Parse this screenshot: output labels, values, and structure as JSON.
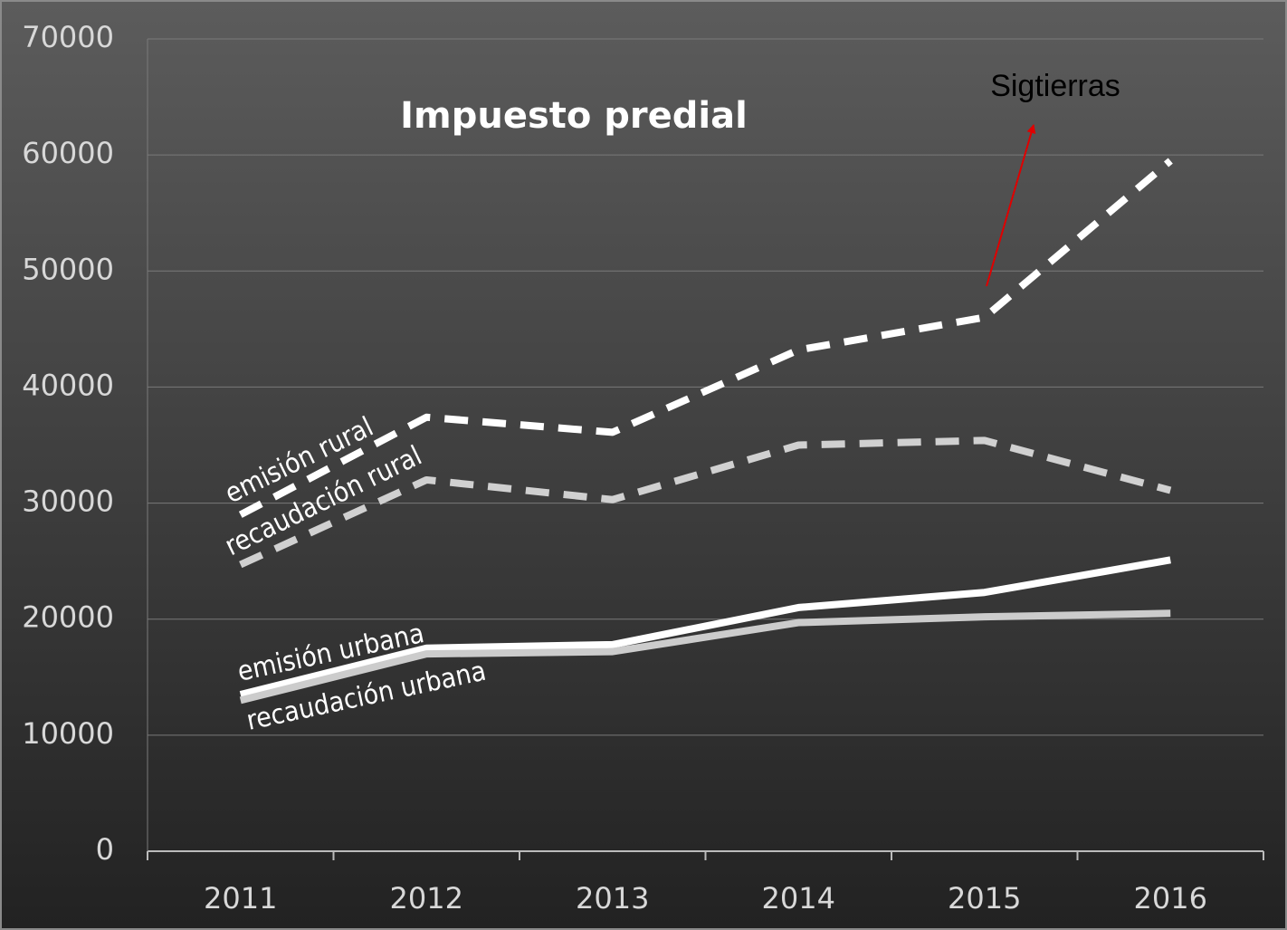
{
  "chart_data": {
    "type": "line",
    "title": "Impuesto predial",
    "categories": [
      "2011",
      "2012",
      "2013",
      "2014",
      "2015",
      "2016"
    ],
    "series": [
      {
        "name": "emisión rural",
        "color": "#ffffff",
        "dashed": true,
        "values": [
          29000,
          37400,
          36100,
          43200,
          46000,
          59500
        ]
      },
      {
        "name": "recaudación rural",
        "color": "#d0d0d0",
        "dashed": true,
        "values": [
          24700,
          32000,
          30300,
          35000,
          35400,
          31100
        ]
      },
      {
        "name": "emisión urbana",
        "color": "#ffffff",
        "dashed": false,
        "values": [
          13500,
          17500,
          17800,
          21000,
          22300,
          25100
        ]
      },
      {
        "name": "recaudación urbana",
        "color": "#cccccc",
        "dashed": false,
        "values": [
          13000,
          17000,
          17200,
          19700,
          20200,
          20500
        ]
      }
    ],
    "ylim": [
      0,
      70000
    ],
    "yticks": [
      0,
      10000,
      20000,
      30000,
      40000,
      50000,
      60000,
      70000
    ],
    "grid": true,
    "annotation": {
      "text": "Sigtierras",
      "color": "#e00000"
    }
  }
}
